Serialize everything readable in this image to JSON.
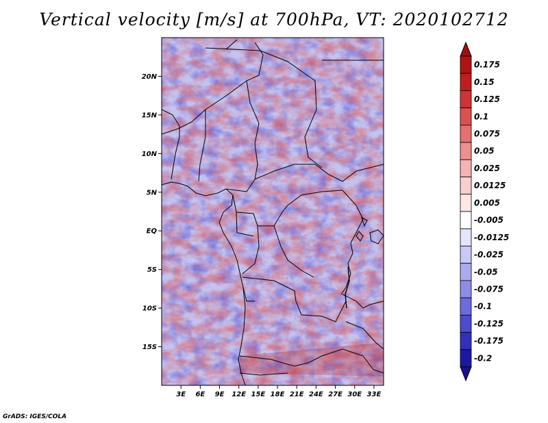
{
  "title": "Vertical velocity [m/s] at 700hPa, VT: 2020102712",
  "credit": "GrADS: IGES/COLA",
  "map": {
    "lon_range": [
      0,
      34.5
    ],
    "lat_range": [
      -20,
      25
    ],
    "lat_ticks": [
      {
        "value": 20,
        "label": "20N"
      },
      {
        "value": 15,
        "label": "15N"
      },
      {
        "value": 10,
        "label": "10N"
      },
      {
        "value": 5,
        "label": "5N"
      },
      {
        "value": 0,
        "label": "EQ"
      },
      {
        "value": -5,
        "label": "5S"
      },
      {
        "value": -10,
        "label": "10S"
      },
      {
        "value": -15,
        "label": "15S"
      }
    ],
    "lon_ticks": [
      {
        "value": 3,
        "label": "3E"
      },
      {
        "value": 6,
        "label": "6E"
      },
      {
        "value": 9,
        "label": "9E"
      },
      {
        "value": 12,
        "label": "12E"
      },
      {
        "value": 15,
        "label": "15E"
      },
      {
        "value": 18,
        "label": "18E"
      },
      {
        "value": 21,
        "label": "21E"
      },
      {
        "value": 24,
        "label": "24E"
      },
      {
        "value": 27,
        "label": "27E"
      },
      {
        "value": 30,
        "label": "30E"
      },
      {
        "value": 33,
        "label": "33E"
      }
    ]
  },
  "colorbar": {
    "levels": [
      {
        "label": "0.175",
        "color": "#b01313"
      },
      {
        "label": "0.15",
        "color": "#c01e1e"
      },
      {
        "label": "0.125",
        "color": "#cf3434"
      },
      {
        "label": "0.1",
        "color": "#dc5050"
      },
      {
        "label": "0.075",
        "color": "#e57070"
      },
      {
        "label": "0.05",
        "color": "#ee9090"
      },
      {
        "label": "0.025",
        "color": "#f5b3b3"
      },
      {
        "label": "0.0125",
        "color": "#f9cece"
      },
      {
        "label": "0.005",
        "color": "#fde7e7"
      },
      {
        "label": "-0.005",
        "color": "#ffffff"
      },
      {
        "label": "-0.0125",
        "color": "#e4e4fb"
      },
      {
        "label": "-0.025",
        "color": "#c9c9f5"
      },
      {
        "label": "-0.05",
        "color": "#ababee"
      },
      {
        "label": "-0.075",
        "color": "#8d8de6"
      },
      {
        "label": "-0.1",
        "color": "#6c6cdc"
      },
      {
        "label": "-0.125",
        "color": "#4c4cce"
      },
      {
        "label": "-0.175",
        "color": "#3030bb"
      },
      {
        "label": "-0.2",
        "color": "#1a1aa0"
      }
    ],
    "top_extend_color": "#a01010",
    "bottom_extend_color": "#1c0f8f"
  }
}
